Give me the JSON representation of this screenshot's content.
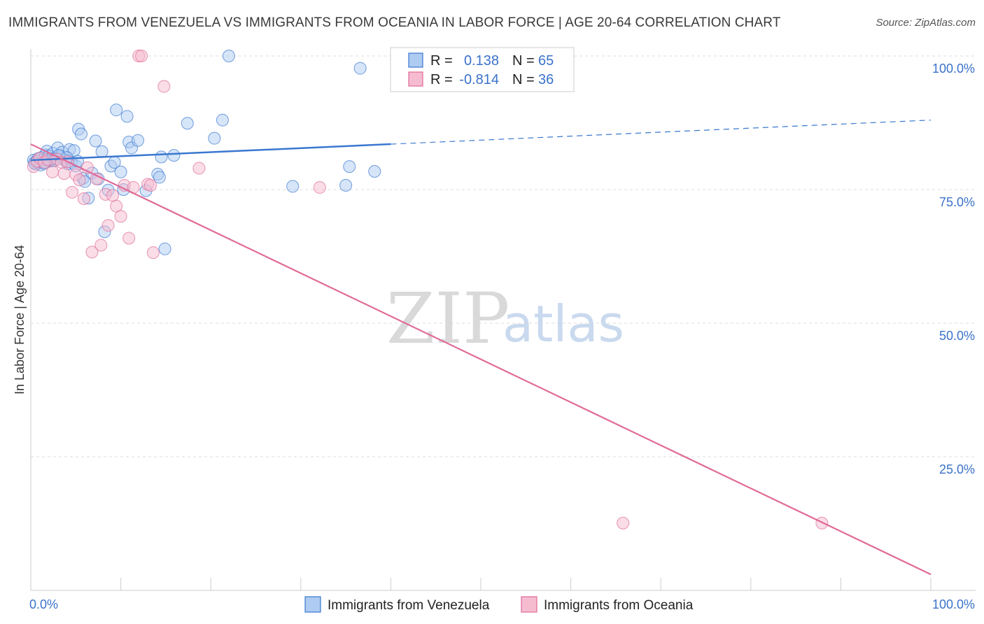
{
  "header": {
    "title": "IMMIGRANTS FROM VENEZUELA VS IMMIGRANTS FROM OCEANIA IN LABOR FORCE | AGE 20-64 CORRELATION CHART",
    "source": "Source: ZipAtlas.com"
  },
  "watermark": {
    "zip": "ZIP",
    "atlas": "atlas"
  },
  "legend": {
    "venezuela": {
      "r_label": "R =",
      "r_value": "0.138",
      "n_label": "N =",
      "n_value": "65"
    },
    "oceania": {
      "r_label": "R =",
      "r_value": "-0.814",
      "n_label": "N =",
      "n_value": "36"
    }
  },
  "colors": {
    "venezuela": "#3a78d0",
    "venezuela_fill": "#aecbf1",
    "oceania": "#e06a97",
    "oceania_fill": "#f5bcd0",
    "axis_text": "#3b72c9",
    "grid": "#dddddd"
  },
  "chart_data": {
    "type": "scatter",
    "title": "IMMIGRANTS FROM VENEZUELA VS IMMIGRANTS FROM OCEANIA IN LABOR FORCE | AGE 20-64 CORRELATION CHART",
    "xlabel": "",
    "ylabel": "In Labor Force | Age 20-64",
    "xlim": [
      0,
      100
    ],
    "ylim": [
      0,
      100
    ],
    "x_tick_labels": [
      "0.0%",
      "100.0%"
    ],
    "y_tick_labels": [
      "100.0%",
      "75.0%",
      "50.0%",
      "25.0%"
    ],
    "y_ticks": [
      100,
      75,
      50,
      25
    ],
    "grid": true,
    "legend_position": "top-center",
    "series": [
      {
        "name": "Immigrants from Venezuela",
        "color": "#3a78d0",
        "R": 0.138,
        "N": 65,
        "trend": {
          "x0": 0.0,
          "y0": 80.5,
          "x1": 40.0,
          "y1": 83.5,
          "dashed_to_x": 100.0,
          "dashed_to_y": 88.0
        },
        "points": [
          [
            0.3,
            80.5
          ],
          [
            0.5,
            79.8
          ],
          [
            0.6,
            80.2
          ],
          [
            0.8,
            80.8
          ],
          [
            1.0,
            80.0
          ],
          [
            1.2,
            81.0
          ],
          [
            1.4,
            80.6
          ],
          [
            1.6,
            81.5
          ],
          [
            1.8,
            82.2
          ],
          [
            2.0,
            81.3
          ],
          [
            2.3,
            80.7
          ],
          [
            2.5,
            81.8
          ],
          [
            2.7,
            80.9
          ],
          [
            3.0,
            82.8
          ],
          [
            3.3,
            81.2
          ],
          [
            3.5,
            82.0
          ],
          [
            3.8,
            80.5
          ],
          [
            4.1,
            79.8
          ],
          [
            4.3,
            82.5
          ],
          [
            4.5,
            80.1
          ],
          [
            4.8,
            82.3
          ],
          [
            5.0,
            79.4
          ],
          [
            5.3,
            86.3
          ],
          [
            5.6,
            85.4
          ],
          [
            5.8,
            77.1
          ],
          [
            6.0,
            76.5
          ],
          [
            6.4,
            73.4
          ],
          [
            6.8,
            78.1
          ],
          [
            7.2,
            84.1
          ],
          [
            7.5,
            77.0
          ],
          [
            7.9,
            82.1
          ],
          [
            8.2,
            67.1
          ],
          [
            8.6,
            74.9
          ],
          [
            8.9,
            79.4
          ],
          [
            9.3,
            80.1
          ],
          [
            9.5,
            89.9
          ],
          [
            10.0,
            78.3
          ],
          [
            10.3,
            75.0
          ],
          [
            10.7,
            88.7
          ],
          [
            10.9,
            83.9
          ],
          [
            11.2,
            82.8
          ],
          [
            11.9,
            84.2
          ],
          [
            12.8,
            74.8
          ],
          [
            14.1,
            77.9
          ],
          [
            14.3,
            77.3
          ],
          [
            14.5,
            81.1
          ],
          [
            14.9,
            63.9
          ],
          [
            15.9,
            81.4
          ],
          [
            17.4,
            87.4
          ],
          [
            20.4,
            84.6
          ],
          [
            21.3,
            88.0
          ],
          [
            22.0,
            100.0
          ],
          [
            29.1,
            75.6
          ],
          [
            35.0,
            75.8
          ],
          [
            35.4,
            79.3
          ],
          [
            36.6,
            97.7
          ],
          [
            38.2,
            78.4
          ],
          [
            1.1,
            79.6
          ],
          [
            2.1,
            80.3
          ],
          [
            3.1,
            81.4
          ],
          [
            0.4,
            80.0
          ],
          [
            1.5,
            79.9
          ],
          [
            2.6,
            80.4
          ],
          [
            4.0,
            81.0
          ],
          [
            5.2,
            80.3
          ]
        ]
      },
      {
        "name": "Immigrants from Oceania",
        "color": "#e06a97",
        "R": -0.814,
        "N": 36,
        "trend": {
          "x0": 0.0,
          "y0": 83.5,
          "x1": 100.0,
          "y1": 3.0
        },
        "points": [
          [
            0.3,
            79.3
          ],
          [
            0.7,
            80.3
          ],
          [
            1.0,
            80.9
          ],
          [
            1.5,
            80.1
          ],
          [
            1.9,
            80.6
          ],
          [
            2.4,
            78.3
          ],
          [
            2.9,
            80.7
          ],
          [
            3.4,
            80.1
          ],
          [
            3.7,
            78.0
          ],
          [
            4.1,
            80.2
          ],
          [
            4.6,
            74.5
          ],
          [
            5.0,
            77.8
          ],
          [
            5.4,
            76.8
          ],
          [
            5.9,
            73.3
          ],
          [
            6.3,
            79.1
          ],
          [
            6.8,
            63.3
          ],
          [
            7.3,
            77.0
          ],
          [
            7.8,
            64.6
          ],
          [
            8.3,
            74.1
          ],
          [
            8.6,
            68.3
          ],
          [
            9.1,
            73.9
          ],
          [
            9.5,
            71.9
          ],
          [
            10.0,
            70.0
          ],
          [
            10.4,
            75.8
          ],
          [
            10.9,
            65.9
          ],
          [
            11.4,
            75.4
          ],
          [
            12.0,
            100.0
          ],
          [
            12.3,
            100.0
          ],
          [
            13.0,
            76.0
          ],
          [
            13.6,
            63.2
          ],
          [
            14.8,
            94.3
          ],
          [
            18.7,
            79.0
          ],
          [
            32.1,
            75.4
          ],
          [
            65.8,
            12.6
          ],
          [
            87.9,
            12.6
          ],
          [
            13.3,
            75.8
          ]
        ]
      }
    ]
  },
  "bottom_legend": {
    "venezuela": "Immigrants from Venezuela",
    "oceania": "Immigrants from Oceania"
  }
}
